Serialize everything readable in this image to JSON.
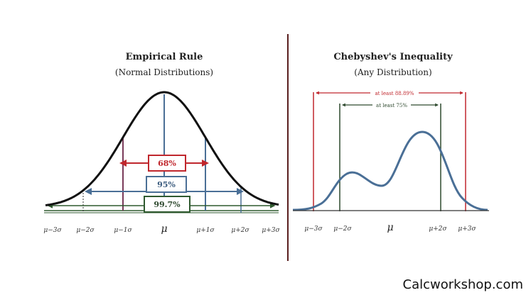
{
  "left": {
    "title": "Empirical Rule",
    "subtitle": "(Normal Distributions)",
    "mu_label": "μ",
    "tick_labels": [
      "μ−3σ",
      "μ−2σ",
      "μ−1σ",
      "μ+1σ",
      "μ+2σ",
      "μ+3σ"
    ],
    "intervals": [
      {
        "label": "68%",
        "color": "#c0272d"
      },
      {
        "label": "95%",
        "color": "#4a6f96"
      },
      {
        "label": "99.7%",
        "color": "#2f5a2f"
      }
    ],
    "curve_color": "#111111"
  },
  "right": {
    "title": "Chebyshev's Inequality",
    "subtitle": "(Any Distribution)",
    "mu_label": "μ",
    "tick_labels": [
      "μ−3σ",
      "μ−2σ",
      "μ+2σ",
      "μ+3σ"
    ],
    "intervals": [
      {
        "label": "at least 88.89%",
        "color": "#c0272d"
      },
      {
        "label": "at least 75%",
        "color": "#2f4a2f"
      }
    ],
    "curve_color": "#4a6f96"
  },
  "watermark": "Calcworkshop.com",
  "divider_color": "#5a1f1f"
}
